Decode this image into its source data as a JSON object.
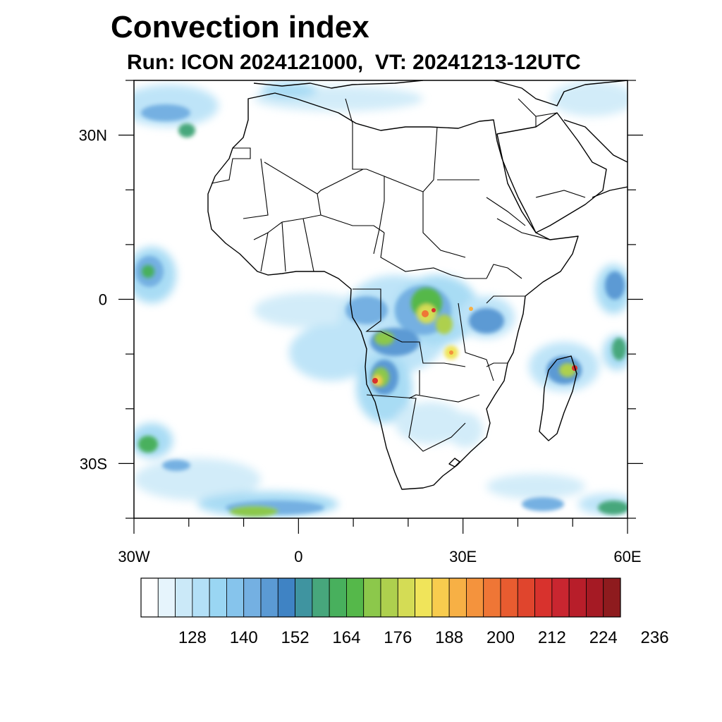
{
  "title": "Convection index",
  "subtitle": "Run: ICON 2024121000,  VT: 20241213-12UTC",
  "map": {
    "lon_range": [
      -30,
      60
    ],
    "lat_range": [
      -40,
      40
    ],
    "x_ticks": [
      {
        "lon": -30,
        "label": "30W"
      },
      {
        "lon": 0,
        "label": "0"
      },
      {
        "lon": 30,
        "label": "30E"
      },
      {
        "lon": 60,
        "label": "60E"
      }
    ],
    "y_ticks": [
      {
        "lat": 30,
        "label": "30N"
      },
      {
        "lat": 0,
        "label": "0"
      },
      {
        "lat": -30,
        "label": "30S"
      }
    ],
    "minor_lon_step": 10,
    "minor_lat_step": 10
  },
  "colorbar": {
    "colors": [
      "#ffffff",
      "#e6f4fc",
      "#cbe9f8",
      "#b3e0f7",
      "#9ad6f3",
      "#86c4ec",
      "#74b0e2",
      "#5b9ad4",
      "#3f83c4",
      "#3f94a0",
      "#47a77c",
      "#48b05d",
      "#55b84a",
      "#8cc84b",
      "#aed04e",
      "#d4dc55",
      "#f0e45a",
      "#f8cc4e",
      "#f7b045",
      "#f4933d",
      "#ef7636",
      "#e85c30",
      "#e0452d",
      "#d8322d",
      "#c92630",
      "#b81e2a",
      "#a51a24",
      "#8e1b1e"
    ],
    "labels": [
      "128",
      "140",
      "152",
      "164",
      "176",
      "188",
      "200",
      "212",
      "224",
      "236"
    ]
  }
}
